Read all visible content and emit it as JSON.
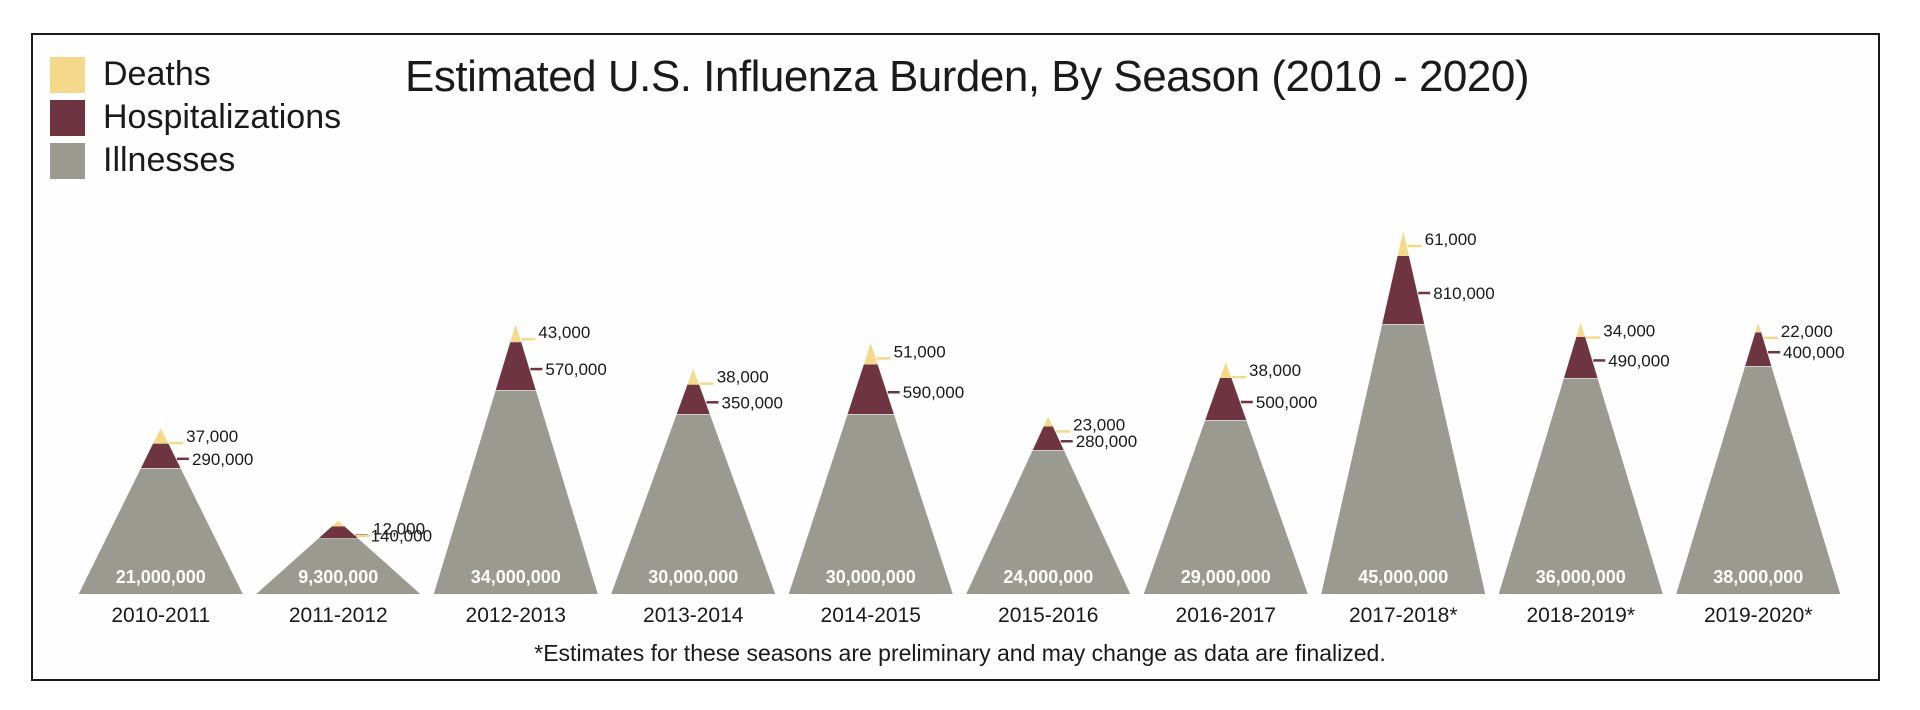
{
  "chart_data": {
    "type": "area",
    "title": "Estimated U.S. Influenza Burden, By Season (2010 - 2020)",
    "footnote": "*Estimates for these seasons are preliminary and may change as data are finalized.",
    "legend": [
      {
        "name": "Deaths",
        "color": "#f5d98a"
      },
      {
        "name": "Hospitalizations",
        "color": "#6e3540"
      },
      {
        "name": "Illnesses",
        "color": "#9a9a91"
      }
    ],
    "legend_position": "top-left",
    "categories": [
      "2010-2011",
      "2011-2012",
      "2012-2013",
      "2013-2014",
      "2014-2015",
      "2015-2016",
      "2016-2017",
      "2017-2018*",
      "2018-2019*",
      "2019-2020*"
    ],
    "series": [
      {
        "name": "Illnesses",
        "values": [
          21000000,
          9300000,
          34000000,
          30000000,
          30000000,
          24000000,
          29000000,
          45000000,
          36000000,
          38000000
        ],
        "labels": [
          "21,000,000",
          "9,300,000",
          "34,000,000",
          "30,000,000",
          "30,000,000",
          "24,000,000",
          "29,000,000",
          "45,000,000",
          "36,000,000",
          "38,000,000"
        ]
      },
      {
        "name": "Hospitalizations",
        "values": [
          290000,
          140000,
          570000,
          350000,
          590000,
          280000,
          500000,
          810000,
          490000,
          400000
        ],
        "labels": [
          "290,000",
          "140,000",
          "570,000",
          "350,000",
          "590,000",
          "280,000",
          "500,000",
          "810,000",
          "490,000",
          "400,000"
        ]
      },
      {
        "name": "Deaths",
        "values": [
          37000,
          12000,
          43000,
          38000,
          51000,
          23000,
          38000,
          61000,
          34000,
          22000
        ],
        "labels": [
          "37,000",
          "12,000",
          "43,000",
          "38,000",
          "51,000",
          "23,000",
          "38,000",
          "61,000",
          "34,000",
          "22,000"
        ]
      }
    ]
  }
}
